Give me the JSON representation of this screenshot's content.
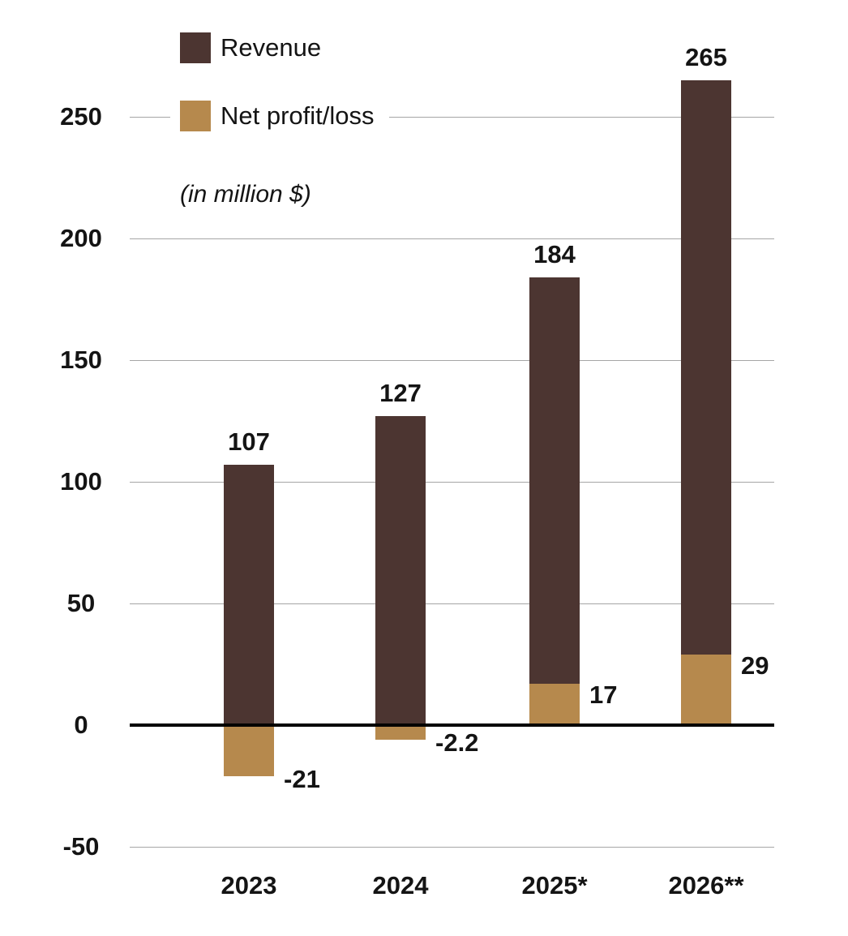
{
  "chart_data": {
    "type": "bar",
    "title": "",
    "categories": [
      "2023",
      "2024",
      "2025*",
      "2026**"
    ],
    "series": [
      {
        "name": "Revenue",
        "values": [
          107,
          127,
          184,
          265
        ],
        "labels": [
          "107",
          "127",
          "184",
          "265"
        ],
        "color": "#4c3531"
      },
      {
        "name": "Net profit/loss",
        "values": [
          -21,
          -2.2,
          17,
          29
        ],
        "labels": [
          "-21",
          "-2.2",
          "17",
          "29"
        ],
        "color": "#b6894d"
      }
    ],
    "unit_note": "(in million $)",
    "xlabel": "",
    "ylabel": "",
    "yticks": [
      250,
      200,
      150,
      100,
      50,
      0,
      -50
    ],
    "ylim": [
      -50,
      280
    ],
    "grid": true,
    "legend_position": "top-left"
  },
  "legend": {
    "items": [
      {
        "label": "Revenue",
        "color": "#4c3531"
      },
      {
        "label": "Net profit/loss",
        "color": "#b6894d"
      }
    ],
    "unit_note": "(in million $)"
  },
  "colors": {
    "revenue": "#4c3531",
    "profit": "#b6894d",
    "gridline": "#a6a6a6",
    "zero_line": "#000000",
    "text": "#141414",
    "background": "#ffffff"
  }
}
